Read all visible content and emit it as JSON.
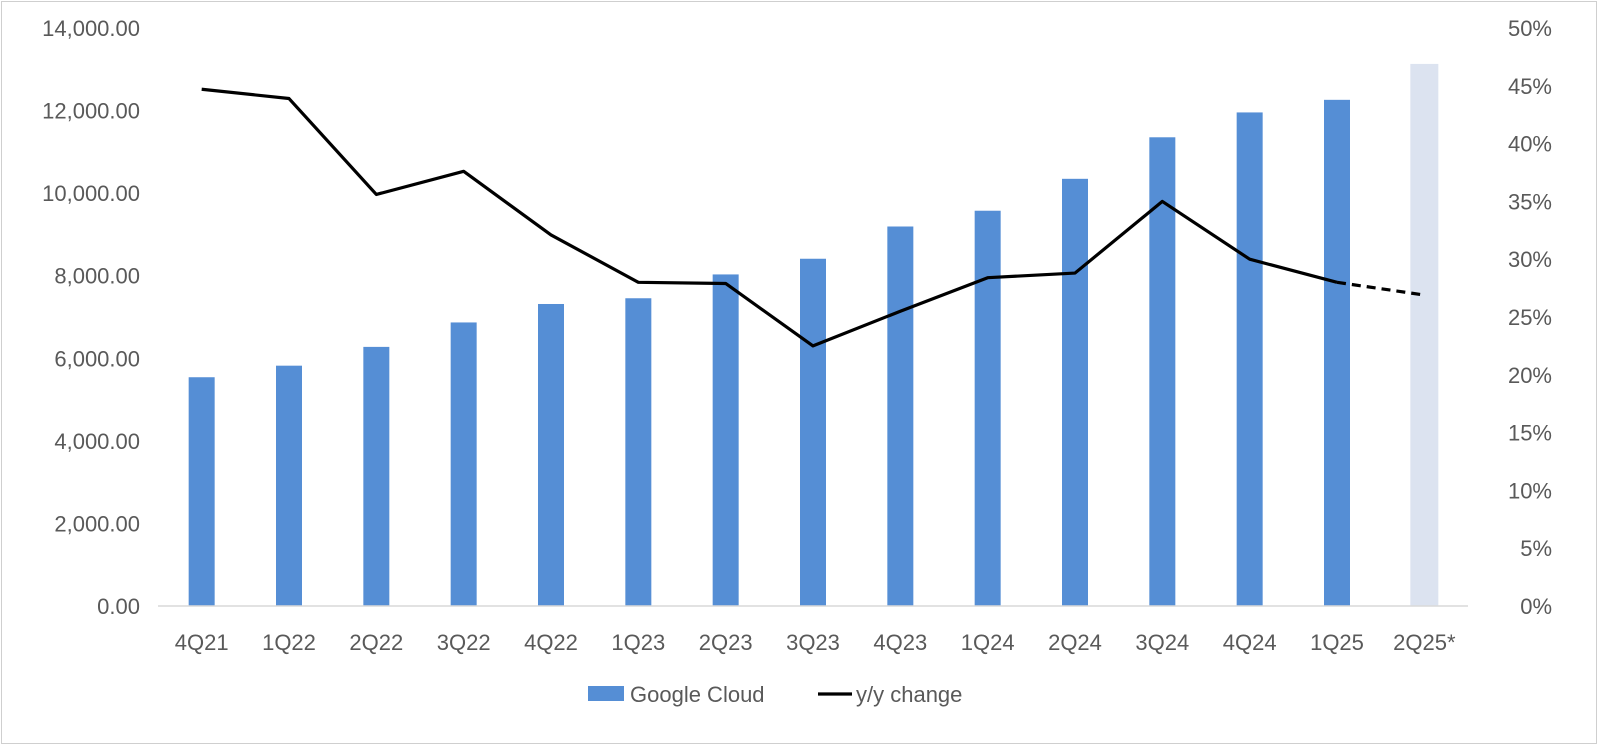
{
  "chart_data": {
    "type": "bar",
    "title": "",
    "categories": [
      "4Q21",
      "1Q22",
      "2Q22",
      "3Q22",
      "4Q22",
      "1Q23",
      "2Q23",
      "3Q23",
      "4Q23",
      "1Q24",
      "2Q24",
      "3Q24",
      "4Q24",
      "1Q25",
      "2Q25*"
    ],
    "series": [
      {
        "name": "Google Cloud",
        "type": "bar",
        "axis": "left",
        "values": [
          5541,
          5821,
          6276,
          6868,
          7315,
          7454,
          8031,
          8411,
          9192,
          9574,
          10347,
          11353,
          11955,
          12260,
          13130
        ],
        "estimated_flags": [
          false,
          false,
          false,
          false,
          false,
          false,
          false,
          false,
          false,
          false,
          false,
          false,
          false,
          false,
          true
        ]
      },
      {
        "name": "y/y change",
        "type": "line",
        "axis": "right",
        "values": [
          0.447,
          0.439,
          0.356,
          0.376,
          0.321,
          0.28,
          0.279,
          0.225,
          0.255,
          0.284,
          0.288,
          0.35,
          0.3,
          0.28,
          0.269
        ],
        "estimated_from_index": 14
      }
    ],
    "y_left": {
      "min": 0,
      "max": 14000,
      "ticks": [
        0,
        2000,
        4000,
        6000,
        8000,
        10000,
        12000,
        14000
      ],
      "tick_labels": [
        "0.00",
        "2,000.00",
        "4,000.00",
        "6,000.00",
        "8,000.00",
        "10,000.00",
        "12,000.00",
        "14,000.00"
      ]
    },
    "y_right": {
      "min": 0,
      "max": 0.5,
      "ticks": [
        0,
        0.05,
        0.1,
        0.15,
        0.2,
        0.25,
        0.3,
        0.35,
        0.4,
        0.45,
        0.5
      ],
      "tick_labels": [
        "0%",
        "5%",
        "10%",
        "15%",
        "20%",
        "25%",
        "30%",
        "35%",
        "40%",
        "45%",
        "50%"
      ]
    },
    "grid": false,
    "legend": {
      "position": "bottom",
      "entries": [
        "Google Cloud",
        "y/y change"
      ]
    },
    "colors": {
      "bar": "#558ed5",
      "bar_estimated": "#dce3f0",
      "line": "#000000",
      "text": "#595959",
      "axis": "#d9d9d9"
    }
  }
}
